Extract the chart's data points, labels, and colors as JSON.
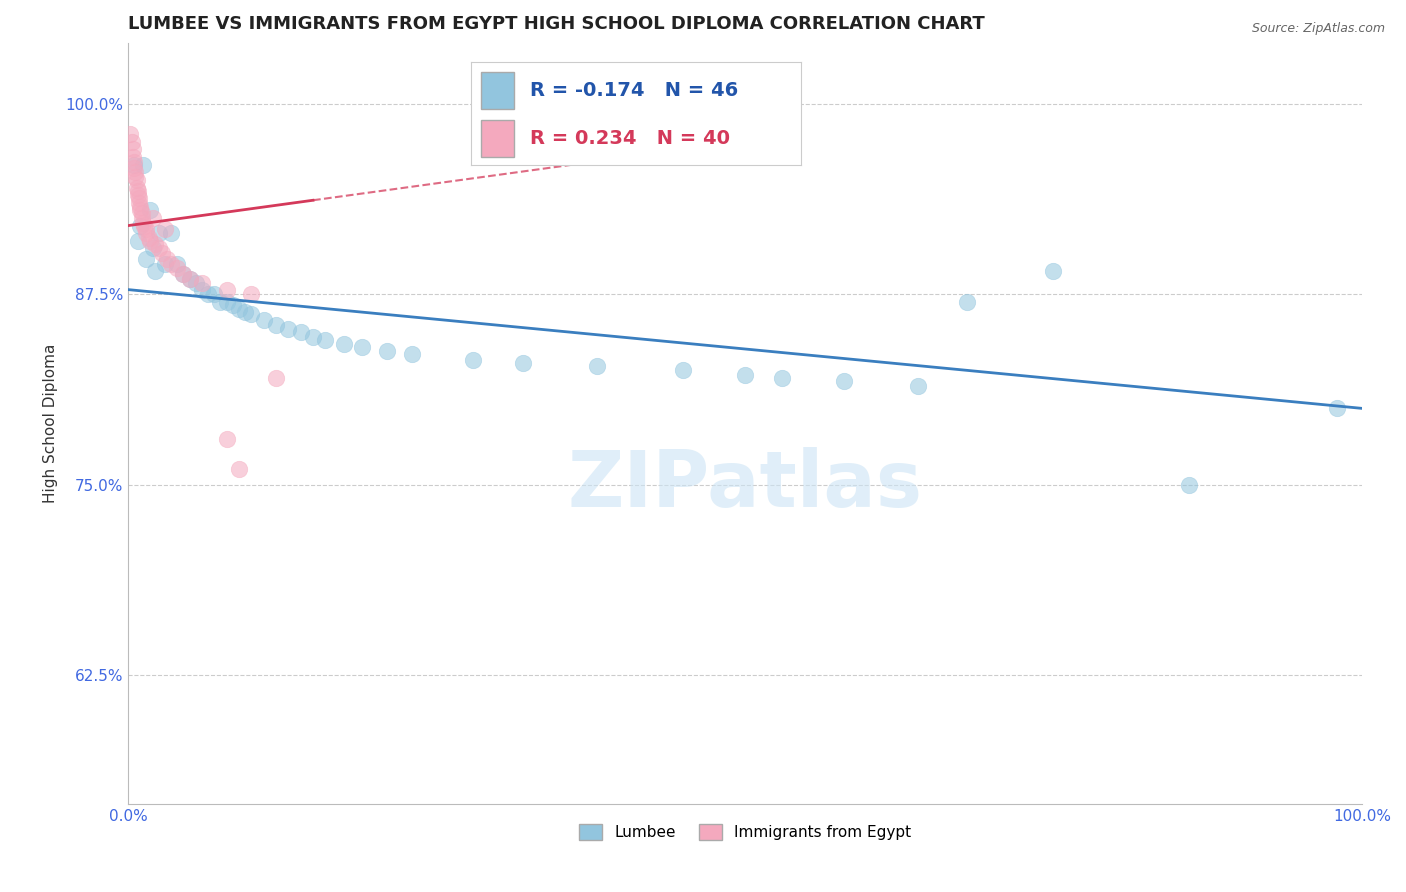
{
  "title": "LUMBEE VS IMMIGRANTS FROM EGYPT HIGH SCHOOL DIPLOMA CORRELATION CHART",
  "source_text": "Source: ZipAtlas.com",
  "ylabel": "High School Diploma",
  "xlim": [
    0,
    1.0
  ],
  "ylim": [
    0.54,
    1.04
  ],
  "yticks": [
    0.625,
    0.75,
    0.875,
    1.0
  ],
  "ytick_labels": [
    "62.5%",
    "75.0%",
    "87.5%",
    "100.0%"
  ],
  "xticks": [
    0.0,
    1.0
  ],
  "xtick_labels": [
    "0.0%",
    "100.0%"
  ],
  "legend_blue_r": "R = -0.174",
  "legend_blue_n": "N = 46",
  "legend_pink_r": "R = 0.234",
  "legend_pink_n": "N = 40",
  "legend_label_blue": "Lumbee",
  "legend_label_pink": "Immigrants from Egypt",
  "blue_color": "#92c5de",
  "pink_color": "#f4a9be",
  "blue_line_color": "#3a7ebf",
  "pink_line_color": "#d4395a",
  "blue_scatter": [
    [
      0.005,
      0.96
    ],
    [
      0.012,
      0.96
    ],
    [
      0.018,
      0.93
    ],
    [
      0.01,
      0.92
    ],
    [
      0.025,
      0.915
    ],
    [
      0.008,
      0.91
    ],
    [
      0.02,
      0.905
    ],
    [
      0.035,
      0.915
    ],
    [
      0.015,
      0.898
    ],
    [
      0.03,
      0.895
    ],
    [
      0.04,
      0.895
    ],
    [
      0.022,
      0.89
    ],
    [
      0.045,
      0.888
    ],
    [
      0.05,
      0.885
    ],
    [
      0.055,
      0.882
    ],
    [
      0.06,
      0.878
    ],
    [
      0.065,
      0.875
    ],
    [
      0.07,
      0.875
    ],
    [
      0.075,
      0.87
    ],
    [
      0.08,
      0.87
    ],
    [
      0.085,
      0.868
    ],
    [
      0.09,
      0.865
    ],
    [
      0.095,
      0.863
    ],
    [
      0.1,
      0.862
    ],
    [
      0.11,
      0.858
    ],
    [
      0.12,
      0.855
    ],
    [
      0.13,
      0.852
    ],
    [
      0.14,
      0.85
    ],
    [
      0.15,
      0.847
    ],
    [
      0.16,
      0.845
    ],
    [
      0.175,
      0.842
    ],
    [
      0.19,
      0.84
    ],
    [
      0.21,
      0.838
    ],
    [
      0.23,
      0.836
    ],
    [
      0.28,
      0.832
    ],
    [
      0.32,
      0.83
    ],
    [
      0.38,
      0.828
    ],
    [
      0.45,
      0.825
    ],
    [
      0.5,
      0.822
    ],
    [
      0.53,
      0.82
    ],
    [
      0.58,
      0.818
    ],
    [
      0.64,
      0.815
    ],
    [
      0.68,
      0.87
    ],
    [
      0.75,
      0.89
    ],
    [
      0.86,
      0.75
    ],
    [
      0.98,
      0.8
    ]
  ],
  "pink_scatter": [
    [
      0.002,
      0.98
    ],
    [
      0.003,
      0.975
    ],
    [
      0.004,
      0.97
    ],
    [
      0.004,
      0.965
    ],
    [
      0.005,
      0.962
    ],
    [
      0.005,
      0.958
    ],
    [
      0.006,
      0.955
    ],
    [
      0.006,
      0.952
    ],
    [
      0.007,
      0.95
    ],
    [
      0.007,
      0.945
    ],
    [
      0.008,
      0.943
    ],
    [
      0.008,
      0.94
    ],
    [
      0.009,
      0.938
    ],
    [
      0.009,
      0.935
    ],
    [
      0.01,
      0.932
    ],
    [
      0.01,
      0.93
    ],
    [
      0.011,
      0.928
    ],
    [
      0.011,
      0.925
    ],
    [
      0.012,
      0.922
    ],
    [
      0.013,
      0.92
    ],
    [
      0.015,
      0.918
    ],
    [
      0.015,
      0.915
    ],
    [
      0.017,
      0.912
    ],
    [
      0.018,
      0.91
    ],
    [
      0.02,
      0.925
    ],
    [
      0.022,
      0.908
    ],
    [
      0.025,
      0.905
    ],
    [
      0.028,
      0.902
    ],
    [
      0.03,
      0.918
    ],
    [
      0.032,
      0.898
    ],
    [
      0.035,
      0.895
    ],
    [
      0.04,
      0.892
    ],
    [
      0.045,
      0.888
    ],
    [
      0.05,
      0.885
    ],
    [
      0.06,
      0.882
    ],
    [
      0.08,
      0.878
    ],
    [
      0.1,
      0.875
    ],
    [
      0.12,
      0.82
    ],
    [
      0.08,
      0.78
    ],
    [
      0.09,
      0.76
    ]
  ],
  "watermark_text": "ZIPatlas",
  "title_fontsize": 13,
  "axis_label_fontsize": 11,
  "tick_color": "#4169E1"
}
